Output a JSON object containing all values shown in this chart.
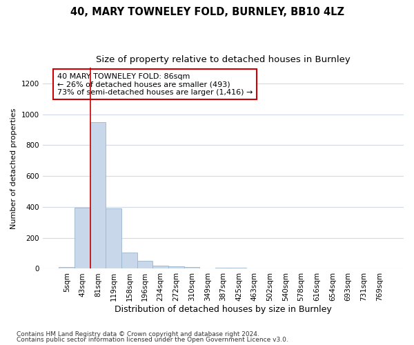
{
  "title1": "40, MARY TOWNELEY FOLD, BURNLEY, BB10 4LZ",
  "title2": "Size of property relative to detached houses in Burnley",
  "xlabel": "Distribution of detached houses by size in Burnley",
  "ylabel": "Number of detached properties",
  "footnote1": "Contains HM Land Registry data © Crown copyright and database right 2024.",
  "footnote2": "Contains public sector information licensed under the Open Government Licence v3.0.",
  "annotation_line1": "40 MARY TOWNELEY FOLD: 86sqm",
  "annotation_line2": "← 26% of detached houses are smaller (493)",
  "annotation_line3": "73% of semi-detached houses are larger (1,416) →",
  "bar_color": "#c8d8ea",
  "bar_edge_color": "#9ab5cc",
  "vline_color": "#cc0000",
  "vline_x": 1.5,
  "ylim": [
    0,
    1300
  ],
  "yticks": [
    0,
    200,
    400,
    600,
    800,
    1000,
    1200
  ],
  "categories": [
    "5sqm",
    "43sqm",
    "81sqm",
    "119sqm",
    "158sqm",
    "196sqm",
    "234sqm",
    "272sqm",
    "310sqm",
    "349sqm",
    "387sqm",
    "425sqm",
    "463sqm",
    "502sqm",
    "540sqm",
    "578sqm",
    "616sqm",
    "654sqm",
    "693sqm",
    "731sqm",
    "769sqm"
  ],
  "values": [
    10,
    393,
    950,
    390,
    105,
    50,
    22,
    15,
    10,
    0,
    5,
    5,
    0,
    0,
    0,
    0,
    0,
    0,
    0,
    0,
    0
  ],
  "bg_color": "#ffffff",
  "grid_color": "#d0d8ea",
  "title1_fontsize": 10.5,
  "title2_fontsize": 9.5,
  "xlabel_fontsize": 9,
  "ylabel_fontsize": 8,
  "tick_fontsize": 7.5,
  "footnote_fontsize": 6.5,
  "annotation_fontsize": 8,
  "annotation_box_color": "#ffffff",
  "annotation_border_color": "#cc0000"
}
